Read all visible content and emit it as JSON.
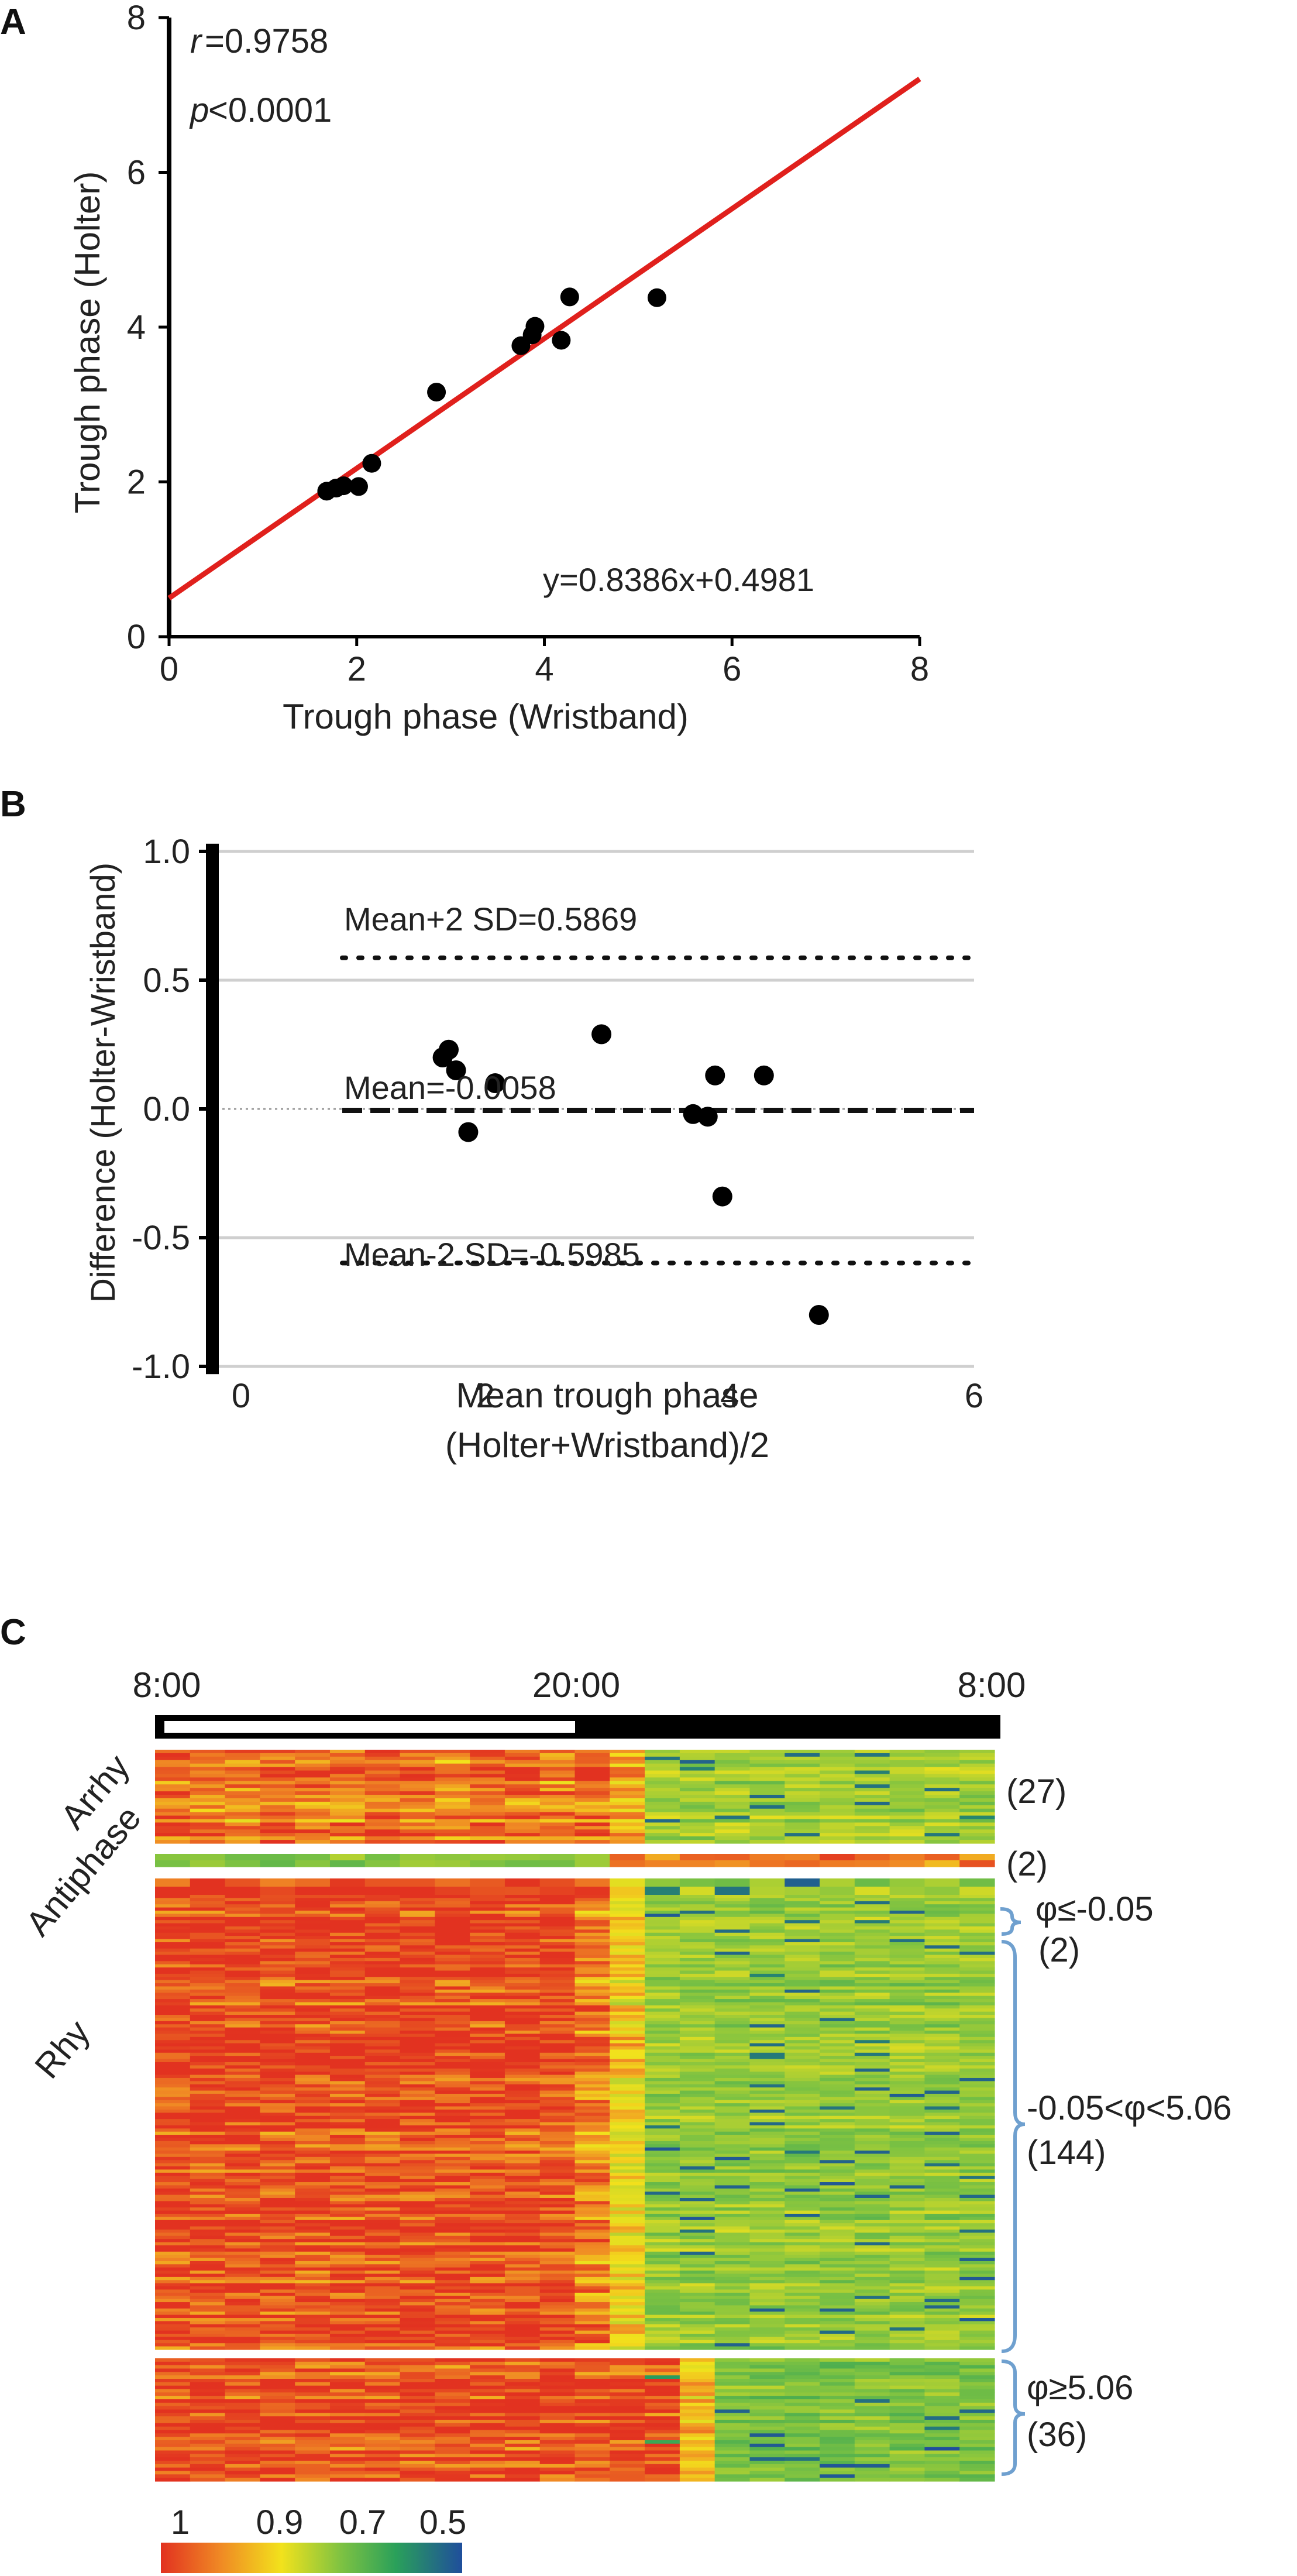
{
  "colors": {
    "fit_line": "#e0201c",
    "point": "#000000",
    "grid": "#cfcfcf",
    "heat_high": "#e23220",
    "heat_mid": "#f2e21c",
    "heat_green": "#7dc242",
    "heat_low": "#1f4e9c"
  },
  "chart_data": [
    {
      "panel": "A",
      "type": "scatter",
      "xlabel": "Trough phase (Wristband)",
      "ylabel": "Trough phase (Holter)",
      "xlim": [
        0,
        8
      ],
      "ylim": [
        0,
        8
      ],
      "xticks": [
        "0",
        "2",
        "4",
        "6",
        "8"
      ],
      "yticks": [
        "0",
        "2",
        "4",
        "6",
        "8"
      ],
      "points": [
        {
          "x": 1.68,
          "y": 1.88
        },
        {
          "x": 1.78,
          "y": 1.92
        },
        {
          "x": 1.86,
          "y": 1.95
        },
        {
          "x": 2.02,
          "y": 1.94
        },
        {
          "x": 2.16,
          "y": 2.24
        },
        {
          "x": 2.85,
          "y": 3.16
        },
        {
          "x": 3.75,
          "y": 3.76
        },
        {
          "x": 3.87,
          "y": 3.9
        },
        {
          "x": 3.9,
          "y": 4.01
        },
        {
          "x": 4.18,
          "y": 3.83
        },
        {
          "x": 4.27,
          "y": 4.39
        },
        {
          "x": 5.2,
          "y": 4.38
        }
      ],
      "fit": {
        "slope": 0.8386,
        "intercept": 0.4981
      },
      "equation": "y=0.8386x+0.4981",
      "annotations": {
        "r_symbol": "r",
        "r_value": "=0.9758",
        "p_symbol": "p",
        "p_value": "<0.0001"
      }
    },
    {
      "panel": "B",
      "type": "scatter",
      "xlabel_line1": "Mean trough phase",
      "xlabel_line2": "(Holter+Wristband)/2",
      "ylabel": "Difference (Holter-Wristband)",
      "xlim": [
        0,
        6
      ],
      "ylim": [
        -1.0,
        1.0
      ],
      "xticks": [
        "0",
        "2",
        "4",
        "6"
      ],
      "yticks": [
        "1.0",
        "0.5",
        "0.0",
        "-0.5",
        "-1.0"
      ],
      "points": [
        {
          "x": 1.65,
          "y": 0.2
        },
        {
          "x": 1.7,
          "y": 0.23
        },
        {
          "x": 1.76,
          "y": 0.15
        },
        {
          "x": 1.86,
          "y": -0.09
        },
        {
          "x": 2.08,
          "y": 0.1
        },
        {
          "x": 2.95,
          "y": 0.29
        },
        {
          "x": 3.7,
          "y": -0.02
        },
        {
          "x": 3.82,
          "y": -0.03
        },
        {
          "x": 3.88,
          "y": 0.13
        },
        {
          "x": 3.94,
          "y": -0.34
        },
        {
          "x": 4.28,
          "y": 0.13
        },
        {
          "x": 4.73,
          "y": -0.8
        }
      ],
      "mean": -0.0058,
      "upper": 0.5869,
      "lower": -0.5985,
      "mean_label": "Mean=-0.0058",
      "upper_label": "Mean+2 SD=0.5869",
      "lower_label": "Mean-2 SD=-0.5985"
    },
    {
      "panel": "C",
      "type": "heatmap",
      "time_labels": [
        "8:00",
        "20:00",
        "8:00"
      ],
      "groups": [
        {
          "label": "Arrhy",
          "count": "(27)",
          "rows": 27
        },
        {
          "label": "Antiphase",
          "count": "(2)",
          "rows": 2
        },
        {
          "label": "Rhy",
          "rows": 182,
          "subgroups": [
            {
              "condition": "φ≤-0.05",
              "count": "(2)",
              "rows": 2
            },
            {
              "condition": "-0.05<φ<5.06",
              "count": "(144)",
              "rows": 144
            },
            {
              "condition": "φ≥5.06",
              "count": "(36)",
              "rows": 36
            }
          ]
        }
      ],
      "colorbar_ticks": [
        "1",
        "0.9",
        "0.7",
        "0.5"
      ],
      "colorbar_range": [
        1.0,
        0.5
      ]
    }
  ]
}
